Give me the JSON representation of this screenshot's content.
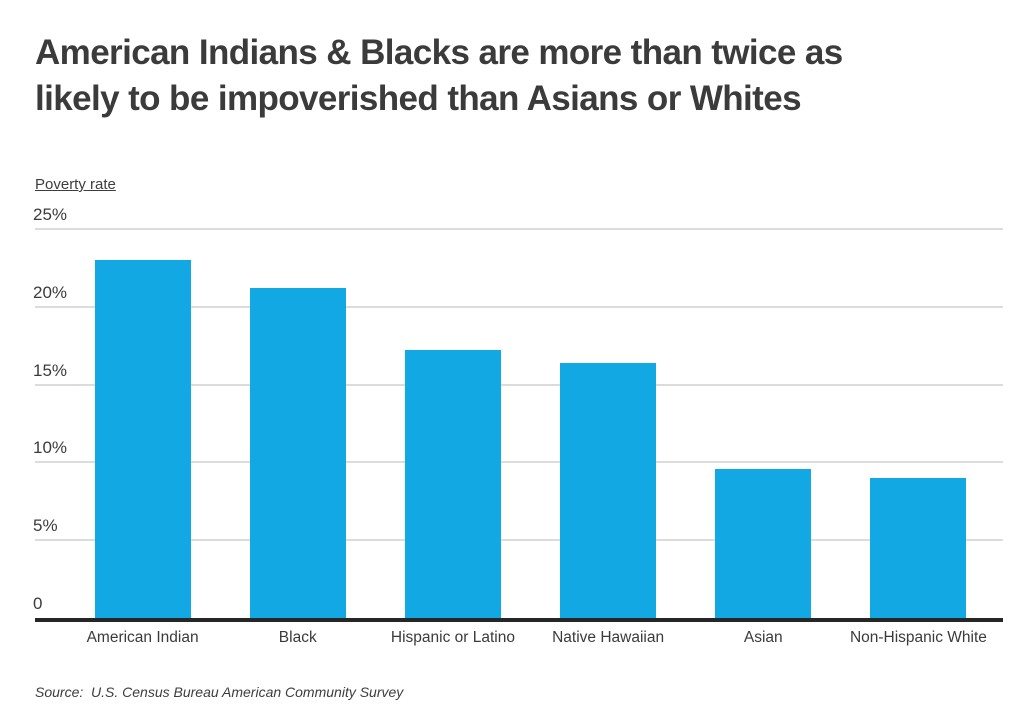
{
  "header": {
    "title_line1": "American Indians & Blacks are more than twice as",
    "title_line2": "likely to be impoverished than Asians or Whites"
  },
  "chart": {
    "axis_title": "Poverty rate",
    "source_text": "Source:  U.S. Census Bureau American Community Survey"
  },
  "chart_data": {
    "type": "bar",
    "title": "American Indians & Blacks are more than twice as likely to be impoverished than Asians or Whites",
    "categories": [
      "American Indian",
      "Black",
      "Hispanic or Latino",
      "Native Hawaiian",
      "Asian",
      "Non-Hispanic White"
    ],
    "values": [
      23,
      21.2,
      17.2,
      16.4,
      9.6,
      9
    ],
    "xlabel": "",
    "ylabel": "Poverty rate",
    "ylim": [
      0,
      25
    ],
    "yticks": [
      {
        "label": "25%",
        "value": 25
      },
      {
        "label": "20%",
        "value": 20
      },
      {
        "label": "15%",
        "value": 15
      },
      {
        "label": "10%",
        "value": 10
      },
      {
        "label": "5%",
        "value": 5
      },
      {
        "label": "0",
        "value": 0
      }
    ],
    "grid": true,
    "legend_position": "none",
    "bar_color": "#12a8e4",
    "gridline_color": "#dcdcdc",
    "axis_color": "#262626",
    "text_color": "#3b3b3b",
    "source": "Source:  U.S. Census Bureau American Community Survey"
  }
}
